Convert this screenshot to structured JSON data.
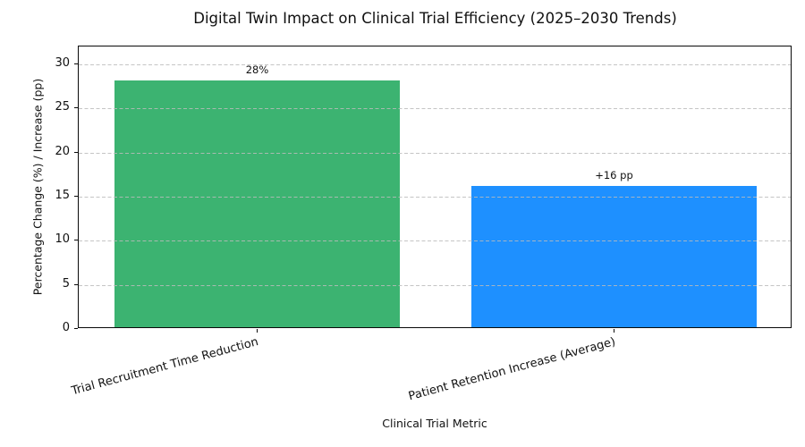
{
  "figure": {
    "background": "#ffffff",
    "text_color": "#111111",
    "spine_color": "#0a0a0a"
  },
  "chart_data": {
    "type": "bar",
    "title": "Digital Twin Impact on Clinical Trial Efficiency (2025–2030 Trends)",
    "xlabel": "Clinical Trial Metric",
    "ylabel": "Percentage Change (%) / Increase (pp)",
    "categories": [
      "Trial Recruitment Time Reduction",
      "Patient Retention Increase (Average)"
    ],
    "values": [
      28,
      16
    ],
    "bar_labels": [
      "28%",
      "+16 pp"
    ],
    "bar_colors": [
      "#3cb371",
      "#1e90ff"
    ],
    "yticks": [
      0,
      5,
      10,
      15,
      20,
      25,
      30
    ],
    "ylim": [
      0,
      32
    ],
    "bar_width_fraction": 0.8,
    "grid": {
      "axis": "y",
      "style": "dashed",
      "color": "#bbbbbb",
      "above_bars": true
    },
    "legend": null,
    "x_tick_label_rotation_deg": 15
  }
}
